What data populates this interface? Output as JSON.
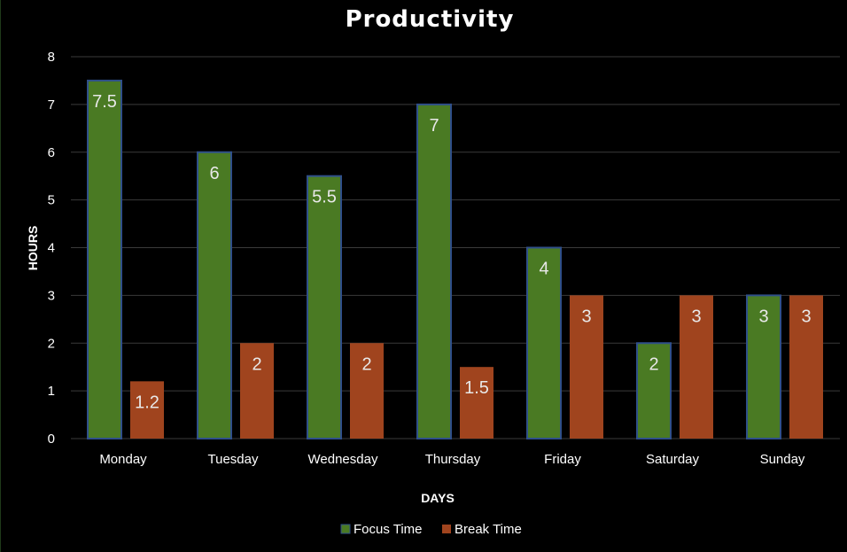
{
  "chart_data": {
    "type": "bar",
    "title": "Productivity",
    "xlabel": "DAYS",
    "ylabel": "HOURS",
    "ylim": [
      0,
      8
    ],
    "yticks": [
      "0",
      "1",
      "2",
      "3",
      "4",
      "5",
      "6",
      "7",
      "8"
    ],
    "grid": true,
    "legend": "bottom",
    "categories": [
      "Monday",
      "Tuesday",
      "Wednesday",
      "Thursday",
      "Friday",
      "Saturday",
      "Sunday"
    ],
    "series": [
      {
        "name": "Focus Time",
        "color": "#4a7a23",
        "values": [
          7.5,
          6,
          5.5,
          7,
          4,
          2,
          3
        ],
        "labels": [
          "7.5",
          "6",
          "5.5",
          "7",
          "4",
          "2",
          "3"
        ]
      },
      {
        "name": "Break Time",
        "color": "#a0441e",
        "values": [
          1.2,
          2,
          2,
          1.5,
          3,
          3,
          3
        ],
        "labels": [
          "1.2",
          "2",
          "2",
          "1.5",
          "3",
          "3",
          "3"
        ]
      }
    ]
  }
}
